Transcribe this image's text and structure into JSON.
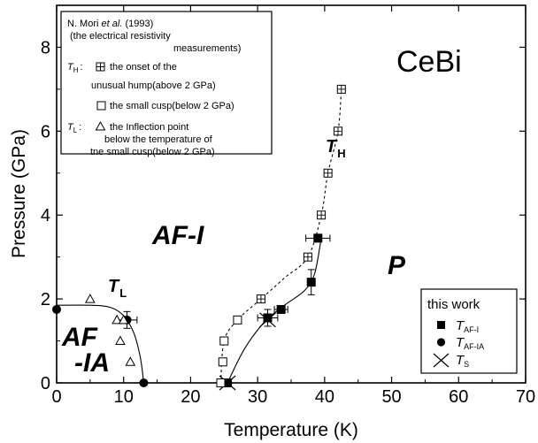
{
  "chart_data": {
    "type": "scatter",
    "title": "",
    "xlabel": "Temperature (K)",
    "ylabel": "Pressure (GPa)",
    "xlim": [
      0,
      70
    ],
    "ylim": [
      0,
      9
    ],
    "xticks": [
      0,
      10,
      20,
      30,
      40,
      50,
      60,
      70
    ],
    "yticks": [
      0,
      2,
      4,
      6,
      8
    ],
    "grid": false,
    "compound_label": "CeBi",
    "phase_labels": [
      "AF-I",
      "AF",
      "-IA",
      "P"
    ],
    "curve_labels": [
      {
        "main": "T",
        "sub": "H"
      },
      {
        "main": "T",
        "sub": "L"
      }
    ],
    "reference_note": {
      "author": "N. Mori",
      "etal": "et al.",
      "year": "(1993)",
      "line2": "(the electrical resistivity",
      "line3": "measurements)",
      "th_symbol": "T",
      "th_sub": "H",
      "th_colon": ":",
      "th_desc1": "the onset of the",
      "th_desc2": "unusual hump(above 2 GPa)",
      "cusp_desc": "the small cusp(below 2 GPa)",
      "tl_symbol": "T",
      "tl_sub": "L",
      "tl_colon": ":",
      "tl_desc1": "the Inflection point",
      "tl_desc2": "below the temperature of",
      "tl_desc3": "tne small cusp(below 2 GPa)"
    },
    "legend": {
      "title": "this work",
      "placement": "bottom-right",
      "entries": [
        {
          "marker": "filled-square",
          "label": "T",
          "sub": "AF-I"
        },
        {
          "marker": "filled-circle",
          "label": "T",
          "sub": "AF-IA"
        },
        {
          "marker": "cross",
          "label": "T",
          "sub": "S"
        }
      ]
    },
    "series": [
      {
        "marker": "filled-square",
        "x": [
          25.5,
          31.5,
          33.5,
          38.0,
          39.0
        ],
        "y": [
          0.0,
          1.55,
          1.75,
          2.4,
          3.45
        ],
        "xerr": [
          0,
          1.5,
          1.0,
          0,
          1.8
        ],
        "yerr": [
          0,
          0.2,
          0,
          0.3,
          0
        ]
      },
      {
        "marker": "filled-circle",
        "x": [
          0.0,
          10.5,
          13.0
        ],
        "y": [
          1.75,
          1.5,
          0.0
        ],
        "xerr": [
          0,
          1.5,
          0
        ],
        "yerr": [
          0,
          0.2,
          0
        ]
      },
      {
        "marker": "cross",
        "x": [
          25.5,
          31.5
        ],
        "y": [
          0.0,
          1.5
        ]
      },
      {
        "marker": "open-square",
        "x": [
          24.5,
          24.8,
          25.0,
          27.0,
          30.5,
          37.5,
          40.5,
          42.0,
          39.5,
          42.5
        ],
        "y": [
          0.0,
          0.5,
          1.0,
          1.5,
          2.0,
          3.0,
          5.0,
          6.0,
          4.0,
          7.0
        ]
      },
      {
        "marker": "open-triangle",
        "x": [
          5.0,
          9.0,
          9.5,
          10.0,
          11.0
        ],
        "y": [
          2.0,
          1.5,
          1.0,
          1.5,
          0.5
        ]
      }
    ],
    "curves": [
      {
        "style": "solid",
        "x": [
          0,
          5,
          8,
          10,
          11.5,
          12.5,
          13.0
        ],
        "y": [
          1.85,
          1.85,
          1.8,
          1.6,
          1.2,
          0.6,
          0.0
        ]
      },
      {
        "style": "solid",
        "x": [
          25.5,
          28,
          31,
          34,
          37,
          38.5,
          39.5
        ],
        "y": [
          0.0,
          0.8,
          1.45,
          1.85,
          2.2,
          2.6,
          3.45
        ]
      },
      {
        "style": "dashed",
        "x": [
          24.5,
          25,
          27,
          30.5,
          34,
          37.5,
          39.5,
          40.5,
          42,
          42.5
        ],
        "y": [
          0.0,
          1.0,
          1.5,
          2.0,
          2.5,
          3.0,
          4.0,
          5.0,
          6.0,
          7.0
        ]
      }
    ]
  }
}
